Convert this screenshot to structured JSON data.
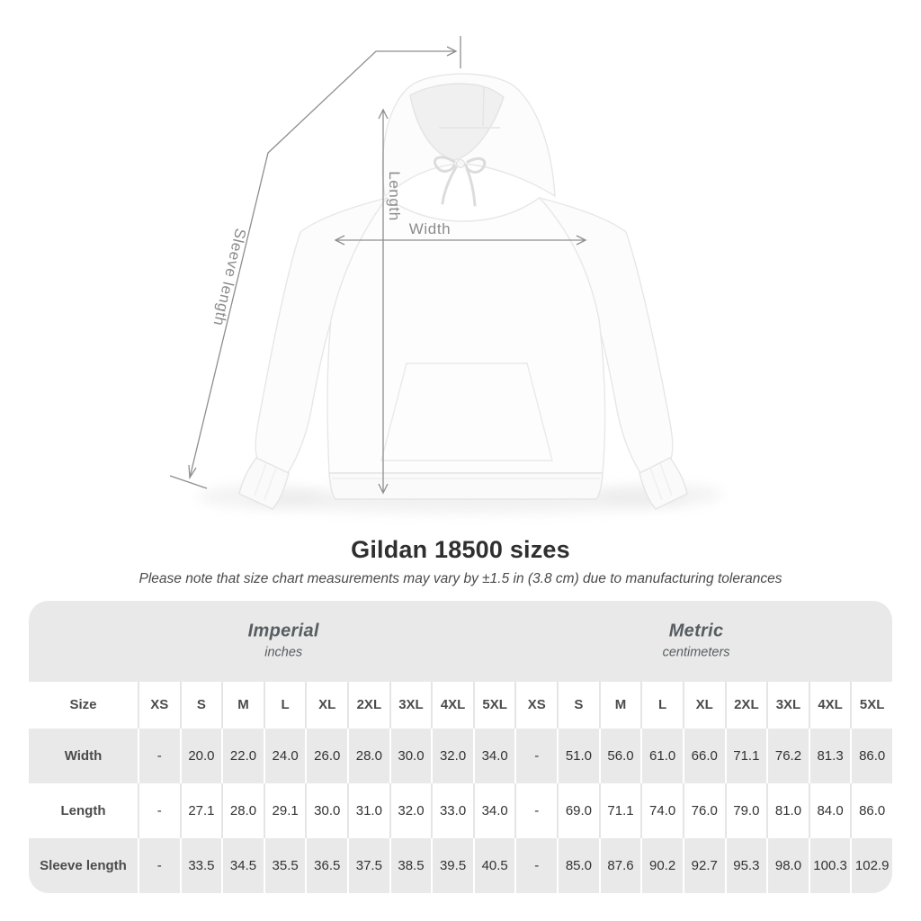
{
  "diagram": {
    "sleeve_length_label": "Sleeve length",
    "length_label": "Length",
    "width_label": "Width"
  },
  "header": {
    "title": "Gildan 18500 sizes",
    "subtitle": "Please note that size chart measurements may vary by ±1.5 in (3.8 cm) due to manufacturing tolerances"
  },
  "table": {
    "size_header": "Size",
    "groups": [
      {
        "label": "Imperial",
        "sublabel": "inches"
      },
      {
        "label": "Metric",
        "sublabel": "centimeters"
      }
    ],
    "size_columns_imperial": [
      "XS",
      "S",
      "M",
      "L",
      "XL",
      "2XL",
      "3XL",
      "4XL",
      "5XL"
    ],
    "size_columns_metric": [
      "XS",
      "S",
      "M",
      "L",
      "XL",
      "2XL",
      "3XL",
      "4XL",
      "5XL"
    ],
    "rows": [
      {
        "label": "Width",
        "imperial": [
          "-",
          "20.0",
          "22.0",
          "24.0",
          "26.0",
          "28.0",
          "30.0",
          "32.0",
          "34.0"
        ],
        "metric": [
          "-",
          "51.0",
          "56.0",
          "61.0",
          "66.0",
          "71.1",
          "76.2",
          "81.3",
          "86.0"
        ]
      },
      {
        "label": "Length",
        "imperial": [
          "-",
          "27.1",
          "28.0",
          "29.1",
          "30.0",
          "31.0",
          "32.0",
          "33.0",
          "34.0"
        ],
        "metric": [
          "-",
          "69.0",
          "71.1",
          "74.0",
          "76.0",
          "79.0",
          "81.0",
          "84.0",
          "86.0"
        ]
      },
      {
        "label": "Sleeve length",
        "imperial": [
          "-",
          "33.5",
          "34.5",
          "35.5",
          "36.5",
          "37.5",
          "38.5",
          "39.5",
          "40.5"
        ],
        "metric": [
          "-",
          "85.0",
          "87.6",
          "90.2",
          "92.7",
          "95.3",
          "98.0",
          "100.3",
          "102.9"
        ]
      }
    ]
  },
  "colors": {
    "stripe_gray": "#e9e9e9",
    "annotation_gray": "#8e8e8e",
    "title_text": "#2f2f2f",
    "header_text": "#4b4b4b",
    "value_text": "#333333"
  },
  "chart_data": {
    "type": "table",
    "title": "Gildan 18500 sizes",
    "note": "Please note that size chart measurements may vary by ±1.5 in (3.8 cm) due to manufacturing tolerances",
    "unit_groups": [
      {
        "name": "Imperial",
        "unit": "inches"
      },
      {
        "name": "Metric",
        "unit": "centimeters"
      }
    ],
    "sizes": [
      "XS",
      "S",
      "M",
      "L",
      "XL",
      "2XL",
      "3XL",
      "4XL",
      "5XL"
    ],
    "measurements": [
      {
        "name": "Width",
        "imperial_inches": [
          null,
          20.0,
          22.0,
          24.0,
          26.0,
          28.0,
          30.0,
          32.0,
          34.0
        ],
        "metric_cm": [
          null,
          51.0,
          56.0,
          61.0,
          66.0,
          71.1,
          76.2,
          81.3,
          86.0
        ]
      },
      {
        "name": "Length",
        "imperial_inches": [
          null,
          27.1,
          28.0,
          29.1,
          30.0,
          31.0,
          32.0,
          33.0,
          34.0
        ],
        "metric_cm": [
          null,
          69.0,
          71.1,
          74.0,
          76.0,
          79.0,
          81.0,
          84.0,
          86.0
        ]
      },
      {
        "name": "Sleeve length",
        "imperial_inches": [
          null,
          33.5,
          34.5,
          35.5,
          36.5,
          37.5,
          38.5,
          39.5,
          40.5
        ],
        "metric_cm": [
          null,
          85.0,
          87.6,
          90.2,
          92.7,
          95.3,
          98.0,
          100.3,
          102.9
        ]
      }
    ]
  }
}
